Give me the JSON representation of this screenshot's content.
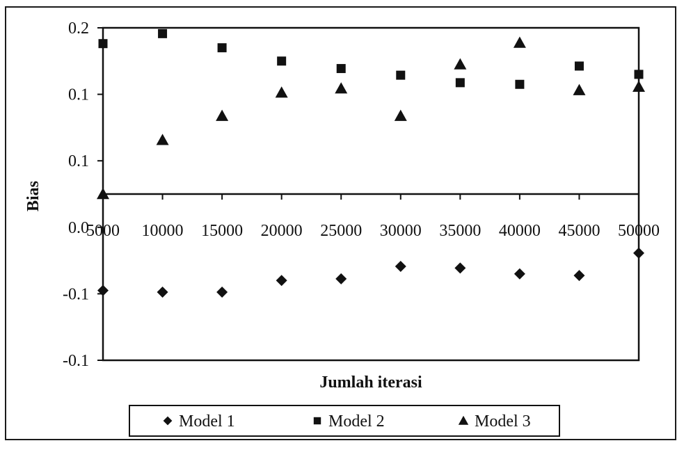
{
  "chart_data": {
    "type": "scatter",
    "title": "",
    "xlabel": "Jumlah iterasi",
    "ylabel": "Bias",
    "x": [
      5000,
      10000,
      15000,
      20000,
      25000,
      30000,
      35000,
      40000,
      45000,
      50000
    ],
    "x_tick_labels": [
      "5000",
      "10000",
      "15000",
      "20000",
      "25000",
      "30000",
      "35000",
      "40000",
      "45000",
      "50000"
    ],
    "y_tick_labels": [
      "0.2",
      "0.1",
      "0.1",
      "0.0",
      "-0.1",
      "-0.1"
    ],
    "ylim": [
      -0.2,
      0.2
    ],
    "grid": false,
    "legend_position": "bottom",
    "series": [
      {
        "name": "Model 1",
        "marker": "diamond",
        "color": "#111111",
        "values": [
          -0.116,
          -0.118,
          -0.118,
          -0.104,
          -0.102,
          -0.087,
          -0.089,
          -0.096,
          -0.098,
          -0.071
        ]
      },
      {
        "name": "Model 2",
        "marker": "square",
        "color": "#111111",
        "values": [
          0.181,
          0.193,
          0.176,
          0.16,
          0.151,
          0.143,
          0.134,
          0.132,
          0.154,
          0.144
        ]
      },
      {
        "name": "Model 3",
        "marker": "triangle",
        "color": "#111111",
        "values": [
          0.0,
          0.065,
          0.094,
          0.122,
          0.127,
          0.094,
          0.156,
          0.182,
          0.125,
          0.129
        ]
      }
    ]
  }
}
